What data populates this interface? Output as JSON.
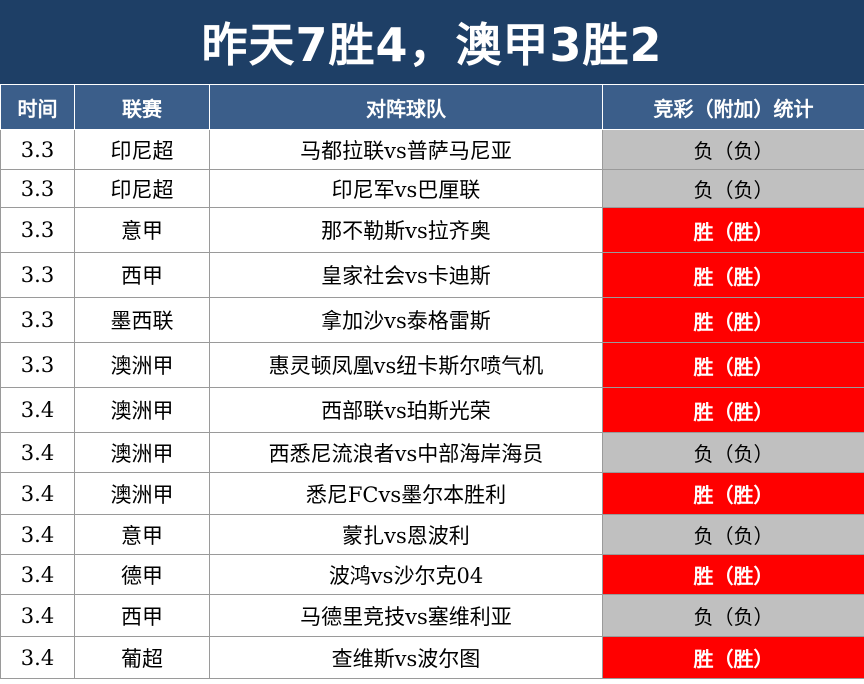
{
  "title": "昨天7胜4，澳甲3胜2",
  "headers": [
    "时间",
    "联赛",
    "对阵球队",
    "竞彩（附加）统计"
  ],
  "colors": {
    "title_bg": "#1e3f66",
    "header_bg": "#3b5e8a",
    "win": "#ff0000",
    "loss": "#c0c0c0"
  },
  "rows": [
    {
      "time": "3.3",
      "league": "印尼超",
      "match": "马都拉联vs普萨马尼亚",
      "result": "负（负）",
      "status": "loss"
    },
    {
      "time": "3.3",
      "league": "印尼超",
      "match": "印尼军vs巴厘联",
      "result": "负（负）",
      "status": "loss"
    },
    {
      "time": "3.3",
      "league": "意甲",
      "match": "那不勒斯vs拉齐奥",
      "result": "胜（胜）",
      "status": "win"
    },
    {
      "time": "3.3",
      "league": "西甲",
      "match": "皇家社会vs卡迪斯",
      "result": "胜（胜）",
      "status": "win"
    },
    {
      "time": "3.3",
      "league": "墨西联",
      "match": "拿加沙vs泰格雷斯",
      "result": "胜（胜）",
      "status": "win"
    },
    {
      "time": "3.3",
      "league": "澳洲甲",
      "match": "惠灵顿凤凰vs纽卡斯尔喷气机",
      "result": "胜（胜）",
      "status": "win"
    },
    {
      "time": "3.4",
      "league": "澳洲甲",
      "match": "西部联vs珀斯光荣",
      "result": "胜（胜）",
      "status": "win"
    },
    {
      "time": "3.4",
      "league": "澳洲甲",
      "match": "西悉尼流浪者vs中部海岸海员",
      "result": "负（负）",
      "status": "loss"
    },
    {
      "time": "3.4",
      "league": "澳洲甲",
      "match": "悉尼FCvs墨尔本胜利",
      "result": "胜（胜）",
      "status": "win"
    },
    {
      "time": "3.4",
      "league": "意甲",
      "match": "蒙扎vs恩波利",
      "result": "负（负）",
      "status": "loss"
    },
    {
      "time": "3.4",
      "league": "德甲",
      "match": "波鸿vs沙尔克04",
      "result": "胜（胜）",
      "status": "win"
    },
    {
      "time": "3.4",
      "league": "西甲",
      "match": "马德里竞技vs塞维利亚",
      "result": "负（负）",
      "status": "loss"
    },
    {
      "time": "3.4",
      "league": "葡超",
      "match": "查维斯vs波尔图",
      "result": "胜（胜）",
      "status": "win"
    }
  ]
}
